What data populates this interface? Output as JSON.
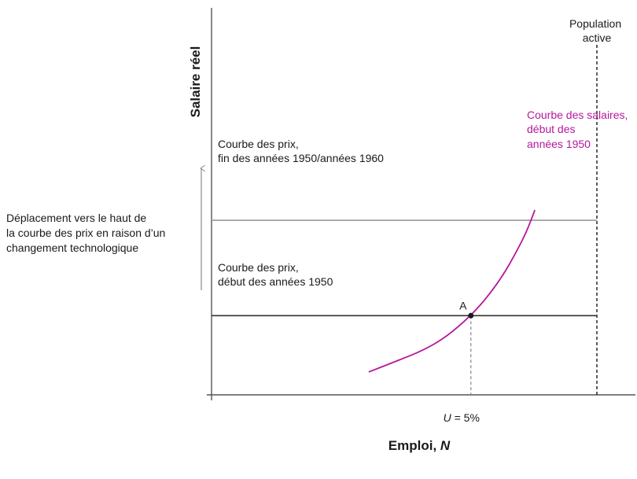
{
  "chart_data": {
    "type": "line",
    "title": "",
    "xlabel": "Emploi, N",
    "xlabel_parts": [
      "Emploi, ",
      "N"
    ],
    "ylabel": "Salaire réel",
    "xlim": [
      0,
      100
    ],
    "ylim": [
      0,
      100
    ],
    "grid": false,
    "x_tick_label": {
      "x": 67.3,
      "variable": "U",
      "text": " = 5%"
    },
    "series": [
      {
        "name_lines": [
          "Courbe des prix,",
          "début des années 1950"
        ],
        "kind": "horizontal",
        "y": 27,
        "color": "#333333"
      },
      {
        "name_lines": [
          "Courbe des prix,",
          "fin des années 1950/années 1960"
        ],
        "kind": "horizontal",
        "y": 59.5,
        "color": "#999999"
      },
      {
        "name_lines": [
          "Courbe des salaires,",
          "début des",
          "années 1950"
        ],
        "kind": "curve",
        "color": "#b5179e",
        "x": [
          40.8,
          48,
          55,
          61,
          67.3,
          72,
          76,
          79,
          81.7,
          83.9,
          85.4
        ],
        "y": [
          7.8,
          11.5,
          15.2,
          19.8,
          27,
          34,
          41.5,
          48.5,
          55.4,
          63,
          59.5
        ]
      },
      {
        "name_lines": [
          "Population",
          "active"
        ],
        "kind": "vertical",
        "x": 100,
        "style": "dashed",
        "color": "#1a1a1a"
      }
    ],
    "points": [
      {
        "label": "A",
        "x": 67.3,
        "y": 27
      }
    ],
    "annotations": [
      {
        "lines": [
          "Déplacement vers le haut de",
          "la courbe des prix en raison d’un",
          "changement technologique"
        ],
        "arrow": "up"
      }
    ]
  }
}
